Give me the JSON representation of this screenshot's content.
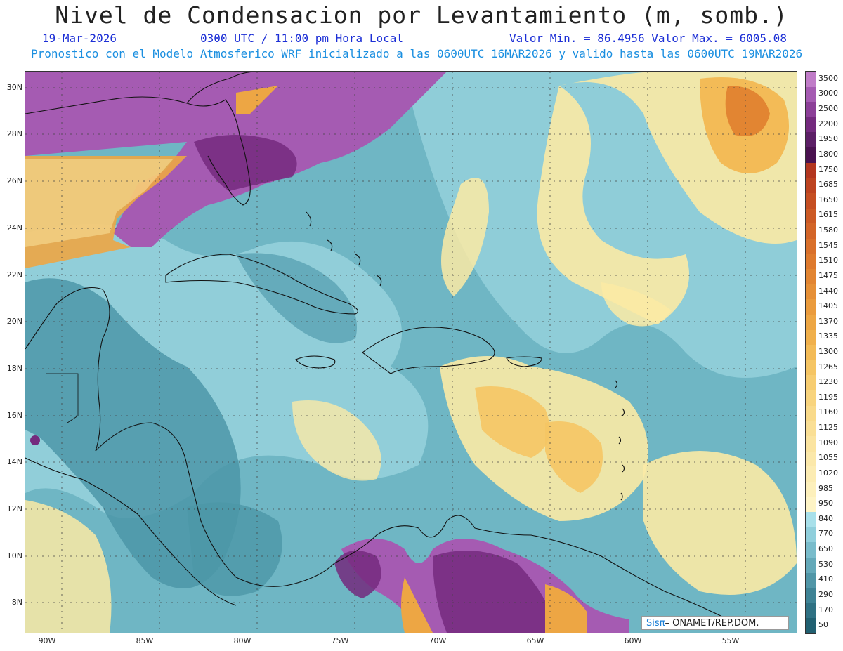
{
  "header": {
    "title": "Nivel de Condensacion por Levantamiento (m, somb.)",
    "date": "19-Mar-2026",
    "time": "0300 UTC / 11:00 pm Hora Local",
    "minmax": "Valor Min. = 86.4956   Valor Max. = 6005.08",
    "model": "Pronostico con el Modelo Atmosferico WRF inicializado a las 0600UTC_16MAR2026 y valido hasta las  0600UTC_19MAR2026"
  },
  "axes": {
    "lat_labels": [
      "30N",
      "28N",
      "26N",
      "24N",
      "22N",
      "20N",
      "18N",
      "16N",
      "14N",
      "12N",
      "10N",
      "8N"
    ],
    "lon_labels": [
      "90W",
      "85W",
      "80W",
      "75W",
      "70W",
      "65W",
      "60W",
      "55W"
    ]
  },
  "colorbar": {
    "labels": [
      "3500",
      "3000",
      "2500",
      "2200",
      "1950",
      "1800",
      "1750",
      "1685",
      "1650",
      "1615",
      "1580",
      "1545",
      "1510",
      "1475",
      "1440",
      "1405",
      "1370",
      "1335",
      "1300",
      "1265",
      "1230",
      "1195",
      "1160",
      "1125",
      "1090",
      "1055",
      "1020",
      "985",
      "950",
      "840",
      "770",
      "650",
      "530",
      "410",
      "290",
      "170",
      "50"
    ],
    "colors": [
      "#c07cc8",
      "#a55bb2",
      "#8c3f98",
      "#742a7e",
      "#5c1f66",
      "#4a1250",
      "#b3361f",
      "#bd4320",
      "#c54e22",
      "#cc5a25",
      "#d36528",
      "#d9702b",
      "#de7a2e",
      "#e28532",
      "#e69037",
      "#ea9b3d",
      "#eda644",
      "#f0b04c",
      "#f3bb57",
      "#f5c564",
      "#f7cd71",
      "#f8d47e",
      "#f9da8a",
      "#fadf95",
      "#fbe4a0",
      "#fbe8aa",
      "#fcecb3",
      "#fdf0bc",
      "#fef4c6",
      "#a8e0ea",
      "#90cfdc",
      "#79bccb",
      "#64a9b9",
      "#5096a7",
      "#3e8395",
      "#2f7183",
      "#216071"
    ]
  },
  "credit": {
    "brand": "Sisπ",
    "text": "– ONAMET/REP.DOM."
  },
  "map_colors": {
    "ocean": "#6fb6c4",
    "light": "#9ad4df",
    "teal": "#4c97a8",
    "yellow": "#fbeaa5",
    "orange": "#eda644",
    "purple": "#a55bb2",
    "darkpurple": "#742a7e"
  }
}
